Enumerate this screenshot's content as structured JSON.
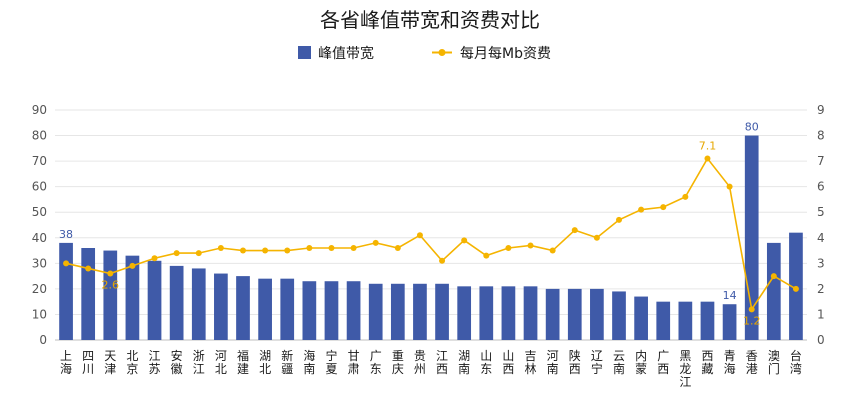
{
  "chart_data": {
    "type": "bar",
    "title": "各省峰值带宽和资费对比",
    "categories": [
      "上海",
      "四川",
      "天津",
      "北京",
      "江苏",
      "安徽",
      "浙江",
      "河北",
      "福建",
      "湖北",
      "新疆",
      "海南",
      "宁夏",
      "甘肃",
      "广东",
      "重庆",
      "贵州",
      "江西",
      "湖南",
      "山东",
      "山西",
      "吉林",
      "河南",
      "陕西",
      "辽宁",
      "云南",
      "内蒙",
      "广西",
      "黑龙江",
      "西藏",
      "青海",
      "香港",
      "澳门",
      "台湾"
    ],
    "category_labels": [
      [
        "上",
        "海"
      ],
      [
        "四",
        "川"
      ],
      [
        "天",
        "津"
      ],
      [
        "北",
        "京"
      ],
      [
        "江",
        "苏"
      ],
      [
        "安",
        "徽"
      ],
      [
        "浙",
        "江"
      ],
      [
        "河",
        "北"
      ],
      [
        "福",
        "建"
      ],
      [
        "湖",
        "北"
      ],
      [
        "新",
        "疆"
      ],
      [
        "海",
        "南"
      ],
      [
        "宁",
        "夏"
      ],
      [
        "甘",
        "肃"
      ],
      [
        "广",
        "东"
      ],
      [
        "重",
        "庆"
      ],
      [
        "贵",
        "州"
      ],
      [
        "江",
        "西"
      ],
      [
        "湖",
        "南"
      ],
      [
        "山",
        "东"
      ],
      [
        "山",
        "西"
      ],
      [
        "吉",
        "林"
      ],
      [
        "河",
        "南"
      ],
      [
        "陕",
        "西"
      ],
      [
        "辽",
        "宁"
      ],
      [
        "云",
        "南"
      ],
      [
        "内",
        "蒙"
      ],
      [
        "广",
        "西"
      ],
      [
        "黑",
        "龙",
        "江"
      ],
      [
        "西",
        "藏"
      ],
      [
        "青",
        "海"
      ],
      [
        "香",
        "港"
      ],
      [
        "澳",
        "门"
      ],
      [
        "台",
        "湾"
      ]
    ],
    "series": [
      {
        "name": "峰值带宽",
        "type": "bar",
        "axis": "left",
        "color": "#3f5aa8",
        "values": [
          38,
          36,
          35,
          33,
          31,
          29,
          28,
          26,
          25,
          24,
          24,
          23,
          23,
          23,
          22,
          22,
          22,
          22,
          21,
          21,
          21,
          21,
          20,
          20,
          20,
          19,
          17,
          15,
          15,
          15,
          14,
          80,
          38,
          42
        ]
      },
      {
        "name": "每月每Mb资费",
        "type": "line",
        "axis": "right",
        "color": "#f5b400",
        "values": [
          3.0,
          2.8,
          2.6,
          2.9,
          3.2,
          3.4,
          3.4,
          3.6,
          3.5,
          3.5,
          3.5,
          3.6,
          3.6,
          3.6,
          3.8,
          3.6,
          4.1,
          3.1,
          3.9,
          3.3,
          3.6,
          3.7,
          3.5,
          4.3,
          4.0,
          4.7,
          5.1,
          5.2,
          5.6,
          7.1,
          6.0,
          1.2,
          2.5,
          2.0
        ]
      }
    ],
    "data_labels": [
      {
        "series": 0,
        "index": 0,
        "text": "38"
      },
      {
        "series": 0,
        "index": 30,
        "text": "14"
      },
      {
        "series": 0,
        "index": 31,
        "text": "80"
      },
      {
        "series": 1,
        "index": 2,
        "text": "2.6"
      },
      {
        "series": 1,
        "index": 29,
        "text": "7.1"
      },
      {
        "series": 1,
        "index": 31,
        "text": "1.2"
      }
    ],
    "left_axis": {
      "ylim": [
        0,
        90
      ],
      "ticks": [
        "0",
        "10",
        "20",
        "30",
        "40",
        "50",
        "60",
        "70",
        "80",
        "90"
      ]
    },
    "right_axis": {
      "ylim": [
        0,
        9
      ],
      "ticks": [
        "0",
        "1",
        "2",
        "3",
        "4",
        "5",
        "6",
        "7",
        "8",
        "9"
      ]
    },
    "grid": true,
    "legend_position": "top-center"
  }
}
